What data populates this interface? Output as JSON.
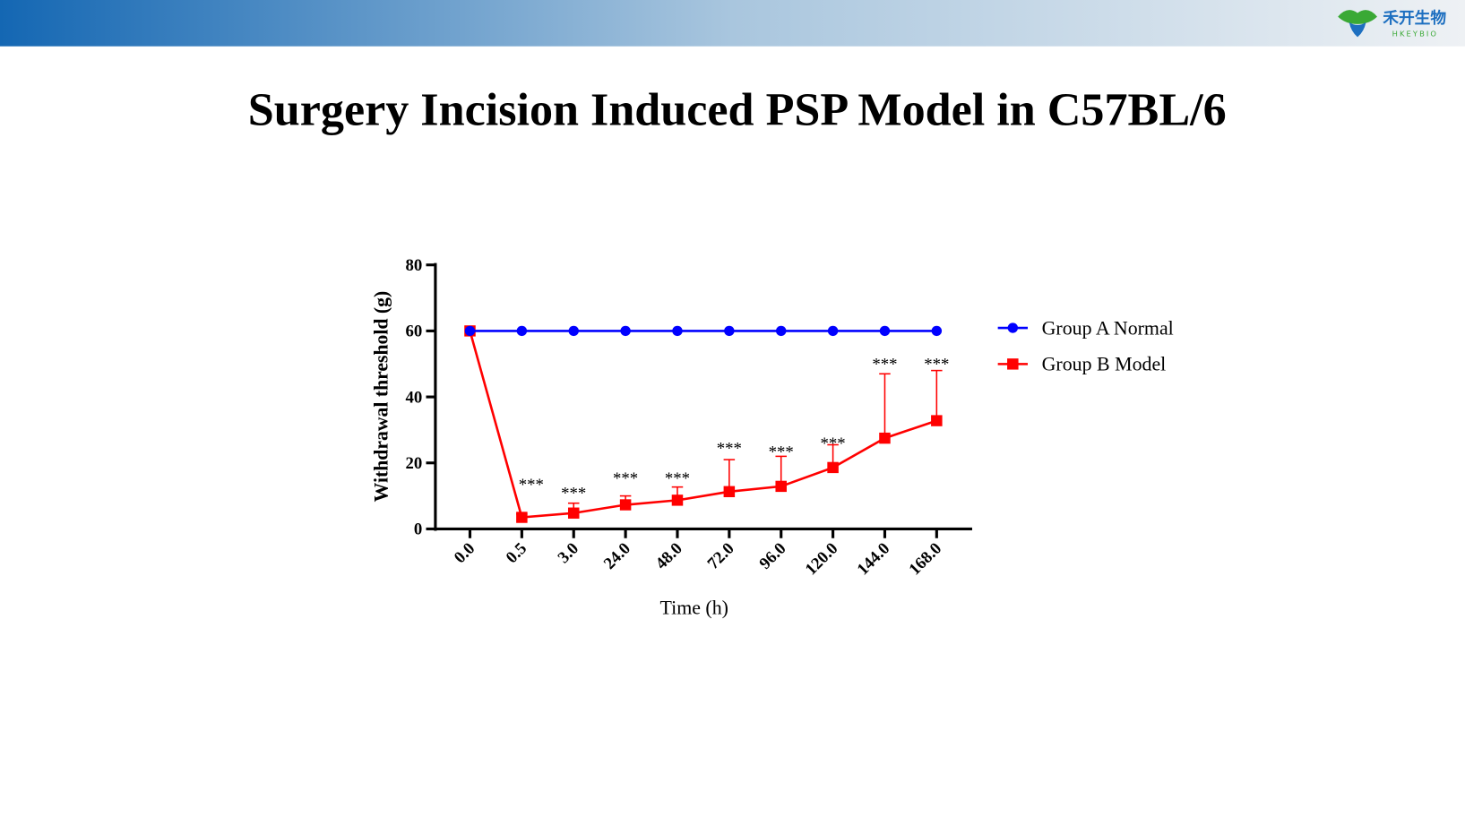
{
  "header": {
    "logo_text": "禾开生物",
    "logo_subtext": "HKEYBIO",
    "gradient_start": "#1467b3",
    "gradient_end": "#eef1f4"
  },
  "slide_title": "Surgery Incision Induced PSP Model in C57BL/6",
  "chart_data": {
    "type": "line",
    "title": "",
    "xlabel": "Time (h)",
    "ylabel": "Withdrawal threshold (g)",
    "categories": [
      "0.0",
      "0.5",
      "3.0",
      "24.0",
      "48.0",
      "72.0",
      "96.0",
      "120.0",
      "144.0",
      "168.0"
    ],
    "ylim": [
      0,
      80
    ],
    "yticks": [
      "0",
      "20",
      "40",
      "60",
      "80"
    ],
    "grid": false,
    "legend_position": "right",
    "series": [
      {
        "name": "Group A Normal",
        "color": "#0000ff",
        "marker": "circle",
        "values": [
          60,
          60,
          60,
          60,
          60,
          60,
          60,
          60,
          60,
          60
        ]
      },
      {
        "name": "Group B Model",
        "color": "#ff0000",
        "marker": "square",
        "values": [
          60,
          3.5,
          4.8,
          7.3,
          8.7,
          11.3,
          12.9,
          18.6,
          27.5,
          32.8
        ],
        "error_upper": [
          null,
          4.5,
          7.8,
          10.0,
          12.7,
          21.0,
          22.0,
          25.5,
          47.0,
          48.0
        ]
      }
    ],
    "annotations": [
      {
        "category": "0.5",
        "text": "***",
        "y": 14
      },
      {
        "category": "3.0",
        "text": "***",
        "y": 11.5
      },
      {
        "category": "24.0",
        "text": "***",
        "y": 16
      },
      {
        "category": "48.0",
        "text": "***",
        "y": 16
      },
      {
        "category": "72.0",
        "text": "***",
        "y": 25
      },
      {
        "category": "96.0",
        "text": "***",
        "y": 24
      },
      {
        "category": "120.0",
        "text": "***",
        "y": 26.5
      },
      {
        "category": "144.0",
        "text": "***",
        "y": 50.5
      },
      {
        "category": "168.0",
        "text": "***",
        "y": 50.5
      }
    ]
  }
}
